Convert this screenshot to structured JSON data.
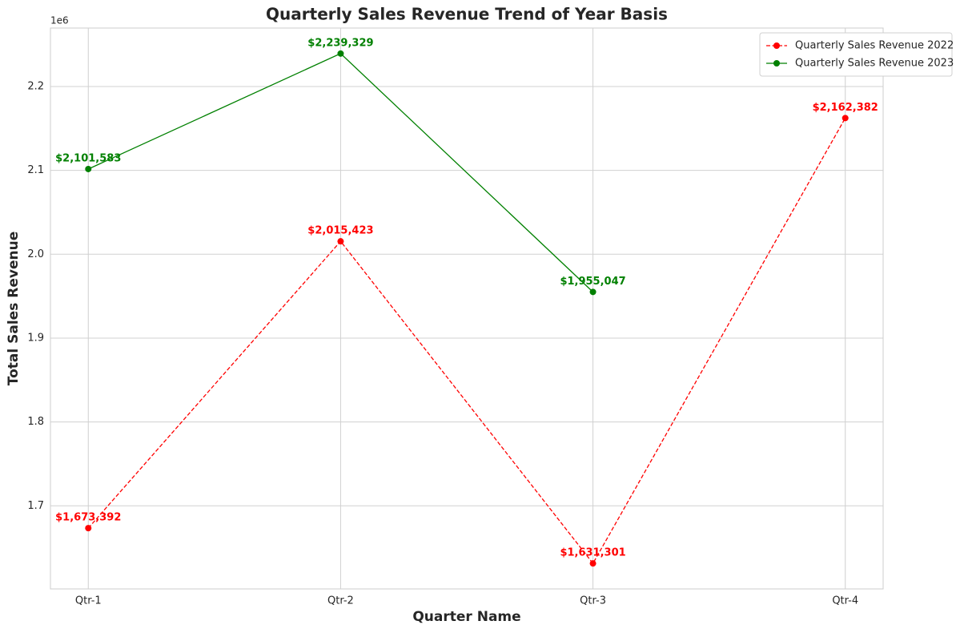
{
  "chart_data": {
    "type": "line",
    "title": "Quarterly Sales Revenue Trend of Year Basis",
    "xlabel": "Quarter Name",
    "ylabel": "Total Sales Revenue",
    "y_offset_label": "1e6",
    "categories": [
      "Qtr-1",
      "Qtr-2",
      "Qtr-3",
      "Qtr-4"
    ],
    "series": [
      {
        "name": "Quarterly Sales Revenue 2022",
        "color": "#ff0000",
        "linestyle": "dashed",
        "values": [
          1673392,
          2015423,
          1631301,
          2162382
        ],
        "value_labels": [
          "$1,673,392",
          "$2,015,423",
          "$1,631,301",
          "$2,162,382"
        ]
      },
      {
        "name": "Quarterly Sales Revenue 2023",
        "color": "#008000",
        "linestyle": "solid",
        "values": [
          2101583,
          2239329,
          1955047,
          null
        ],
        "value_labels": [
          "$2,101,583",
          "$2,239,329",
          "$1,955,047",
          null
        ]
      }
    ],
    "ylim": [
      1600900,
      2269730
    ],
    "yticks": [
      {
        "value": 1700000,
        "label": "1.7"
      },
      {
        "value": 1800000,
        "label": "1.8"
      },
      {
        "value": 1900000,
        "label": "1.9"
      },
      {
        "value": 2000000,
        "label": "2.0"
      },
      {
        "value": 2100000,
        "label": "2.1"
      },
      {
        "value": 2200000,
        "label": "2.2"
      }
    ],
    "grid": true,
    "legend": "upper right"
  }
}
